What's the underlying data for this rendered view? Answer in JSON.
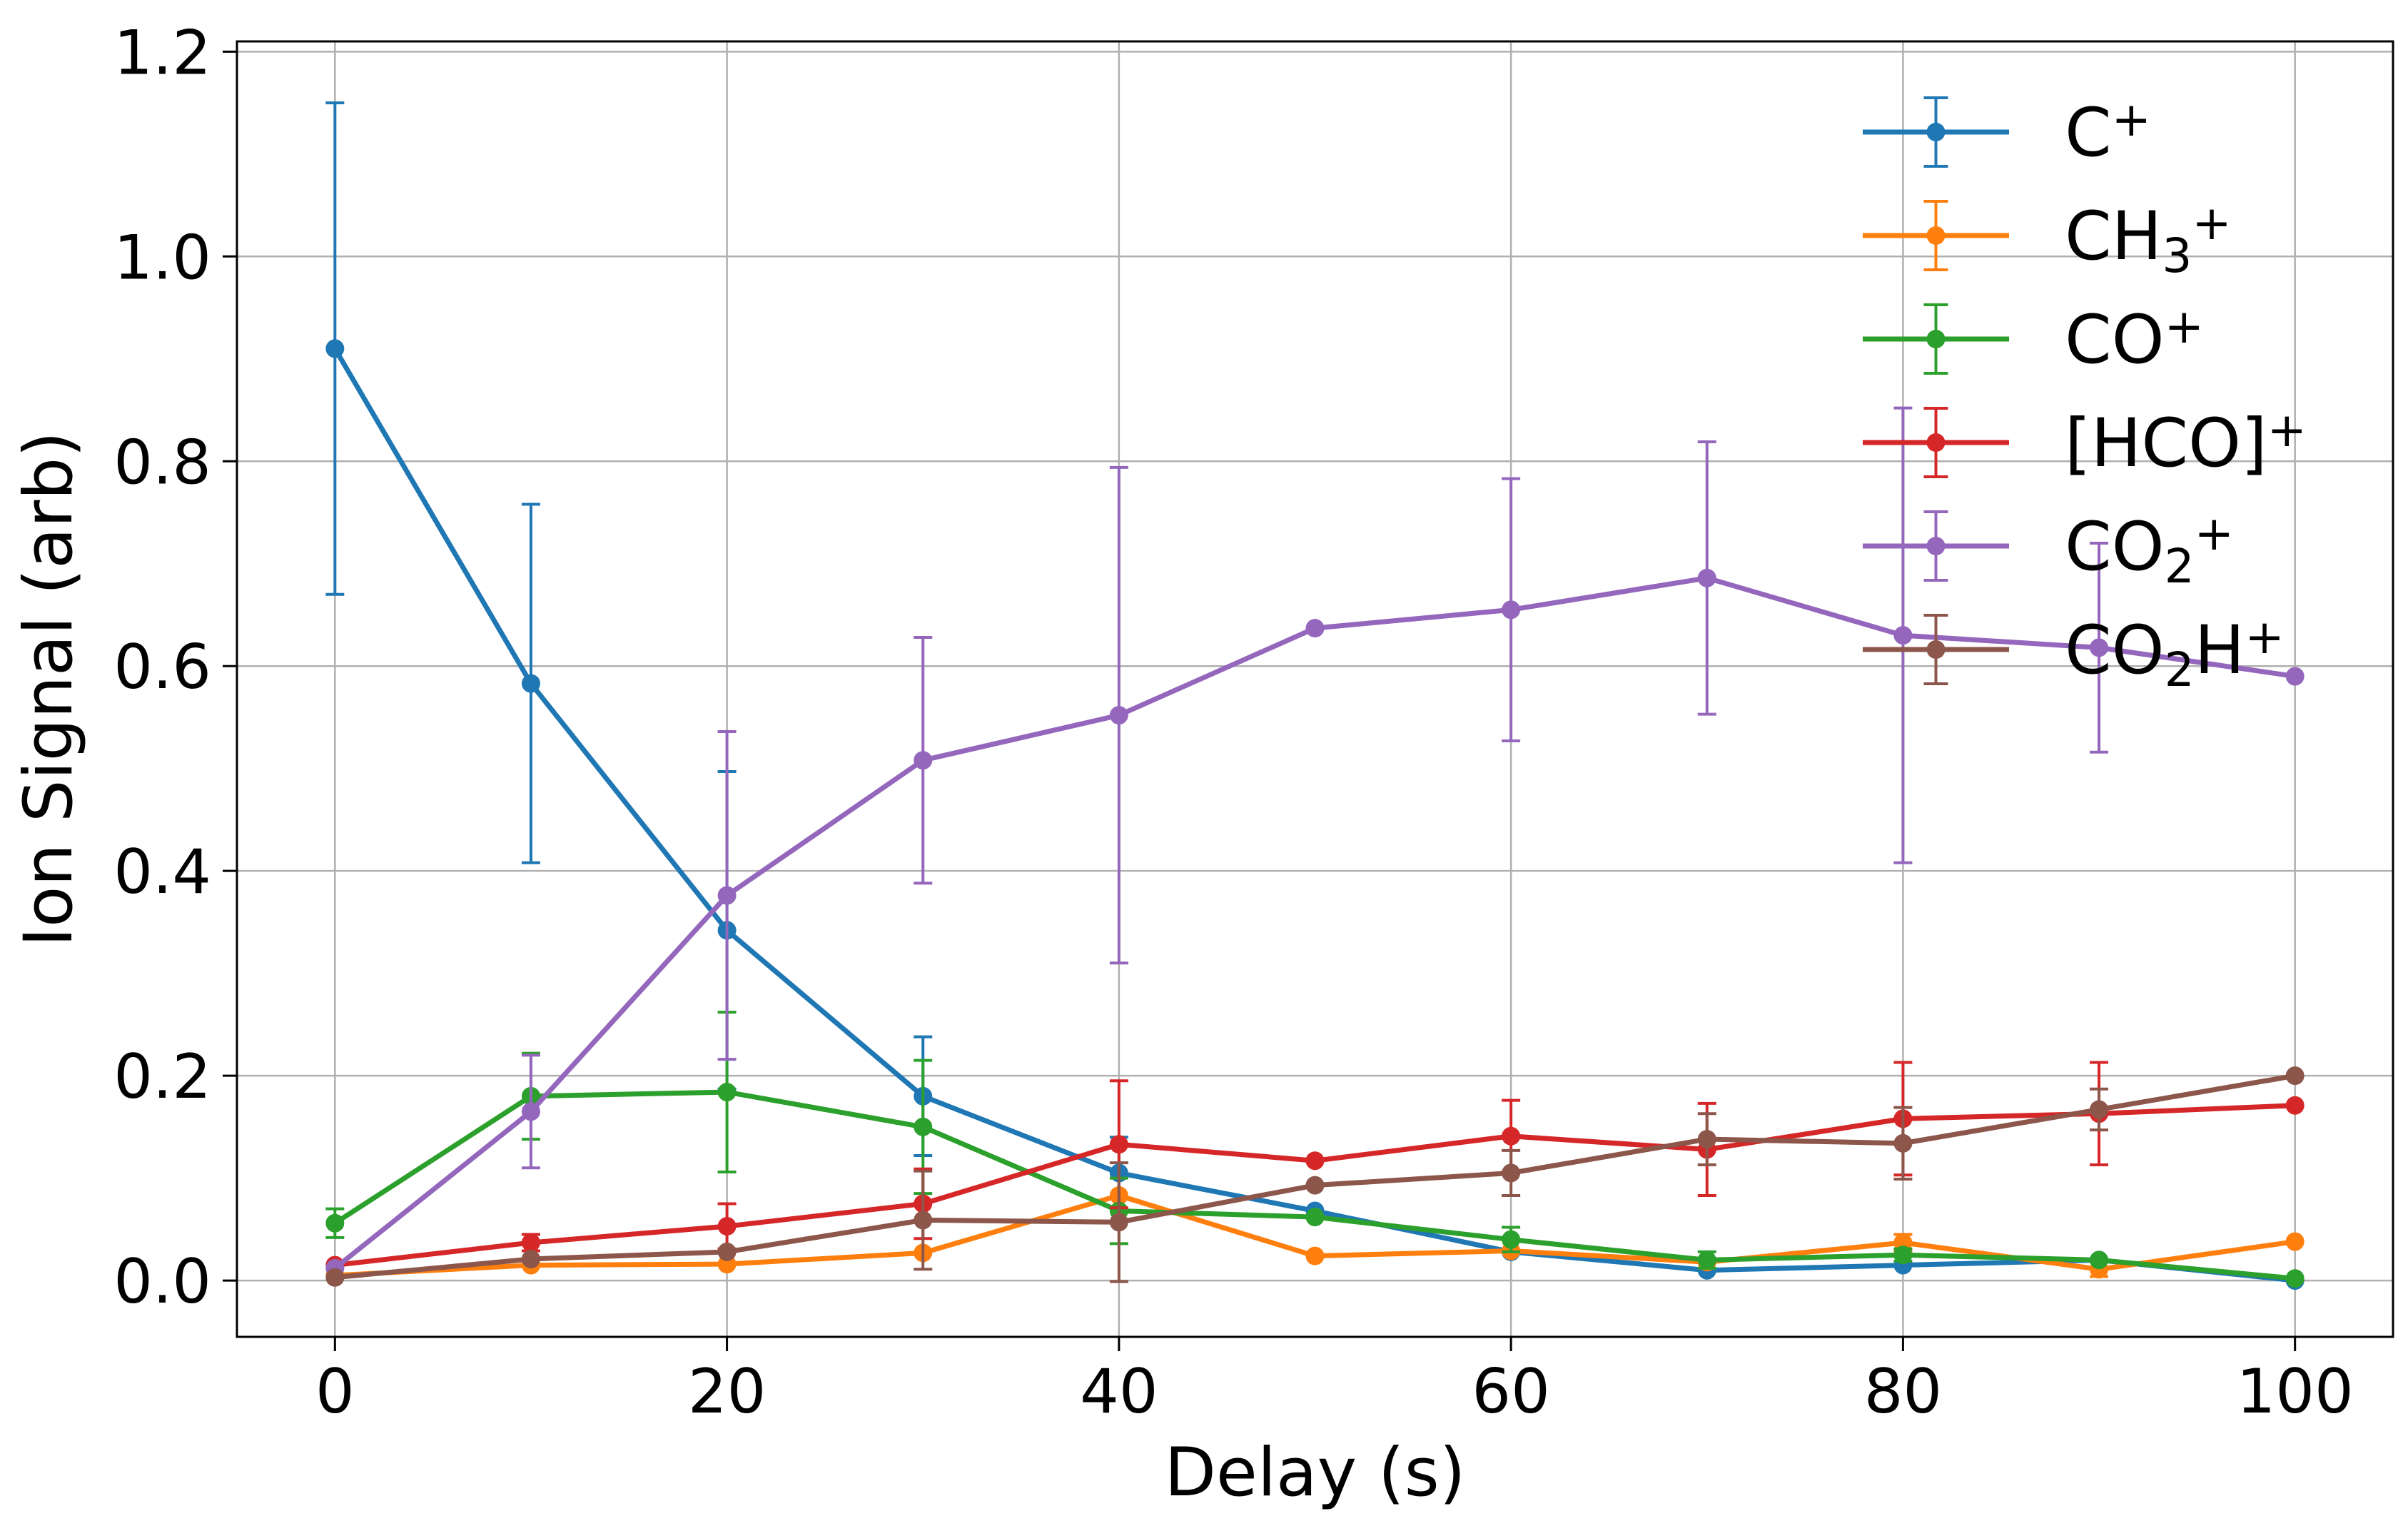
{
  "chart_data": {
    "type": "line",
    "xlabel": "Delay (s)",
    "ylabel": "Ion Signal (arb)",
    "xlim": [
      -5,
      105
    ],
    "ylim": [
      -0.055,
      1.21
    ],
    "xticks": [
      "0",
      "20",
      "40",
      "60",
      "80",
      "100"
    ],
    "yticks": [
      "0.0",
      "0.2",
      "0.4",
      "0.6",
      "0.8",
      "1.0",
      "1.2"
    ],
    "grid": true,
    "legend_position": "top-right",
    "x": [
      0,
      10,
      20,
      30,
      40,
      50,
      60,
      70,
      80,
      90,
      100
    ],
    "series": [
      {
        "name": "C+",
        "legend": {
          "base": "C",
          "sub": "",
          "sup": "+"
        },
        "color": "#1f77b4",
        "values": [
          0.91,
          0.583,
          0.342,
          0.18,
          0.105,
          0.068,
          0.028,
          0.01,
          0.015,
          0.02,
          0.0
        ],
        "errors": [
          0.24,
          0.175,
          0.155,
          0.058,
          0.035,
          0.0,
          0.0,
          0.0,
          0.0,
          0.0,
          0.0
        ]
      },
      {
        "name": "CH3+",
        "legend": {
          "base": "CH",
          "sub": "3",
          "sup": "+"
        },
        "color": "#ff7f0e",
        "values": [
          0.005,
          0.015,
          0.016,
          0.027,
          0.083,
          0.024,
          0.029,
          0.018,
          0.037,
          0.011,
          0.038
        ],
        "errors": [
          0.0,
          0.0,
          0.0,
          0.0,
          0.0,
          0.0,
          0.0,
          0.0,
          0.008,
          0.007,
          0.0
        ]
      },
      {
        "name": "CO+",
        "legend": {
          "base": "CO",
          "sub": "",
          "sup": "+"
        },
        "color": "#2ca02c",
        "values": [
          0.056,
          0.18,
          0.184,
          0.15,
          0.068,
          0.062,
          0.04,
          0.02,
          0.025,
          0.02,
          0.002
        ],
        "errors": [
          0.014,
          0.042,
          0.078,
          0.065,
          0.032,
          0.0,
          0.012,
          0.008,
          0.006,
          0.0,
          0.0
        ]
      },
      {
        "name": "[HCO]+",
        "legend": {
          "base": "[HCO]",
          "sub": "",
          "sup": "+"
        },
        "color": "#d62728",
        "values": [
          0.015,
          0.037,
          0.053,
          0.075,
          0.133,
          0.117,
          0.141,
          0.128,
          0.158,
          0.163,
          0.171
        ],
        "errors": [
          0.0,
          0.008,
          0.022,
          0.034,
          0.062,
          0.0,
          0.035,
          0.045,
          0.055,
          0.05,
          0.0
        ]
      },
      {
        "name": "CO2+",
        "legend": {
          "base": "CO",
          "sub": "2",
          "sup": "+"
        },
        "color": "#9467bd",
        "values": [
          0.012,
          0.165,
          0.376,
          0.508,
          0.552,
          0.637,
          0.655,
          0.686,
          0.63,
          0.618,
          0.59
        ],
        "errors": [
          0.0,
          0.055,
          0.16,
          0.12,
          0.242,
          0.0,
          0.128,
          0.133,
          0.222,
          0.102,
          0.0
        ]
      },
      {
        "name": "CO2H+",
        "legend": {
          "base": "CO",
          "sub": "2",
          "tail": "H",
          "sup": "+"
        },
        "color": "#8c564b",
        "values": [
          0.003,
          0.021,
          0.028,
          0.059,
          0.057,
          0.093,
          0.105,
          0.138,
          0.134,
          0.167,
          0.2
        ],
        "errors": [
          0.0,
          0.0,
          0.0,
          0.048,
          0.058,
          0.0,
          0.022,
          0.025,
          0.035,
          0.02,
          0.0
        ]
      }
    ]
  }
}
